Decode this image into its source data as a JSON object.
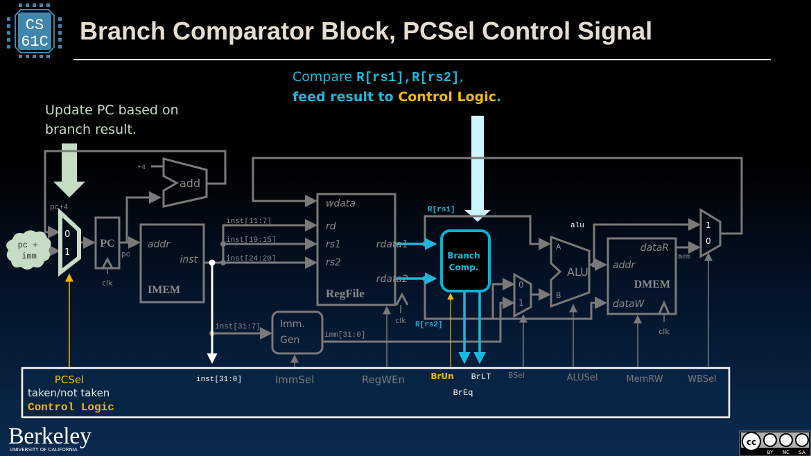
{
  "title": "Branch Comparator Block, PCSel Control Signal",
  "logo": {
    "line1": "CS",
    "line2": "61C"
  },
  "annotations": {
    "compare_prefix": "Compare ",
    "rs1": "R[rs1]",
    "comma": ",",
    "rs2": "R[rs2]",
    "comma2": ",",
    "feed_prefix": "feed result to ",
    "control_logic": "Control Logic",
    "period": ".",
    "update_line1": "Update PC based on",
    "update_line2": "branch result."
  },
  "datapath": {
    "pc4": "pc+4",
    "cloud_line1": "pc +",
    "cloud_line2": "imm",
    "mux0": "0",
    "mux1": "1",
    "pc": "PC",
    "pc_out": "pc",
    "clk": "clk",
    "plus4": "+4",
    "add": "add",
    "imem": {
      "addr": "addr",
      "inst": "inst",
      "name": "IMEM"
    },
    "inst_11_7": "inst[11:7]",
    "inst_19_15": "inst[19:15]",
    "inst_24_20": "inst[24:20]",
    "inst_31_7": "inst[31:7]",
    "regfile": {
      "wdata": "wdata",
      "rd": "rd",
      "rs1": "rs1",
      "rs2": "rs2",
      "rdata1": "rdata1",
      "rdata2": "rdata2",
      "name": "RegFile"
    },
    "immgen": {
      "line1": "Imm.",
      "line2": "Gen"
    },
    "imm_31_0": "imm[31:0]",
    "r_rs1": "R[rs1]",
    "r_rs2": "R[rs2]",
    "branch_comp": {
      "line1": "Branch",
      "line2": "Comp."
    },
    "alu": {
      "a": "A",
      "b": "B",
      "name": "ALU",
      "out": "alu"
    },
    "dmem": {
      "dataR": "dataR",
      "addr": "addr",
      "name": "DMEM",
      "dataW": "dataW",
      "mem": "mem"
    }
  },
  "control": {
    "pcsel": "PCSel",
    "taken": "taken/not taken",
    "name": "Control Logic",
    "inst": "inst[31:0]",
    "immsel": "ImmSel",
    "regwen": "RegWEn",
    "brun": "BrUn",
    "brlt": "BrLT",
    "breq": "BrEq",
    "bsel": "BSel",
    "alusel": "ALUSel",
    "memrw": "MemRW",
    "wbsel": "WBSel"
  },
  "footer": {
    "berkeley": "Berkeley",
    "uc": "UNIVERSITY OF CALIFORNIA",
    "cc": [
      "BY",
      "NC",
      "SA"
    ]
  },
  "colors": {
    "title": "#e6ddd0",
    "cyan": "#1ab8e0",
    "yellow": "#f5b800",
    "green": "#c5dcc5",
    "wire": "#7a7a7a"
  }
}
